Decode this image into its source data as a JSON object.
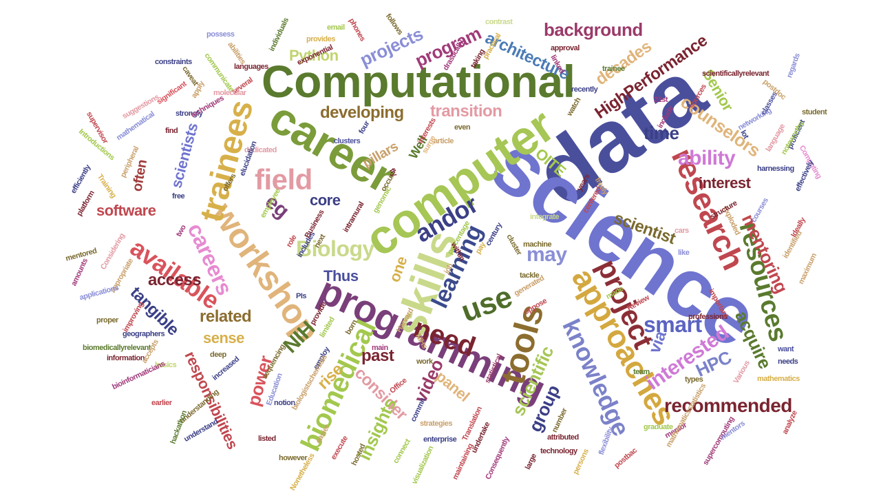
{
  "words": [
    {
      "text": "data",
      "color": "#4a4f9c"
    },
    {
      "text": "science",
      "color": "#6f74cf"
    },
    {
      "text": "Computational",
      "color": "#5a7a2e"
    },
    {
      "text": "computer",
      "color": "#a6c655"
    },
    {
      "text": "career",
      "color": "#7b9c3a"
    },
    {
      "text": "programming",
      "color": "#7a3f7a"
    },
    {
      "text": "skills",
      "color": "#c9d98a"
    },
    {
      "text": "workshop",
      "color": "#e0b47a"
    },
    {
      "text": "trainees",
      "color": "#d7b04a"
    },
    {
      "text": "research",
      "color": "#c0474f"
    },
    {
      "text": "approaches",
      "color": "#d4a83f"
    },
    {
      "text": "tools",
      "color": "#8c6d2f"
    },
    {
      "text": "knowledge",
      "color": "#7b82c9"
    },
    {
      "text": "project",
      "color": "#8c2e36"
    },
    {
      "text": "biomedical",
      "color": "#a3c84e"
    },
    {
      "text": "resources",
      "color": "#5a7a2e"
    },
    {
      "text": "field",
      "color": "#e39aa3"
    },
    {
      "text": "available",
      "color": "#d9535c"
    },
    {
      "text": "careers",
      "color": "#e78ad1"
    },
    {
      "text": "use",
      "color": "#4f6d2a"
    },
    {
      "text": "need",
      "color": "#7a2430"
    },
    {
      "text": "Biology",
      "color": "#c9d98a"
    },
    {
      "text": "learning",
      "color": "#3b4a8c"
    },
    {
      "text": "smart",
      "color": "#5b63c2"
    },
    {
      "text": "andor",
      "color": "#3b3f86"
    },
    {
      "text": "may",
      "color": "#8a8ed6"
    },
    {
      "text": "background",
      "color": "#9a3a6a"
    },
    {
      "text": "architecture",
      "color": "#4a7bb5"
    },
    {
      "text": "HighPerformance",
      "color": "#7a2430"
    },
    {
      "text": "projects",
      "color": "#8a8ed6"
    },
    {
      "text": "program",
      "color": "#a13a7a"
    },
    {
      "text": "Python",
      "color": "#c0d46e"
    },
    {
      "text": "developing",
      "color": "#8c6d2f"
    },
    {
      "text": "transition",
      "color": "#e39aa3"
    },
    {
      "text": "scientists",
      "color": "#6f74cf"
    },
    {
      "text": "counselors",
      "color": "#e0b47a"
    },
    {
      "text": "ability",
      "color": "#cf79d6"
    },
    {
      "text": "time",
      "color": "#3b3f86"
    },
    {
      "text": "OITE",
      "color": "#a3c84e"
    },
    {
      "text": "interest",
      "color": "#7a2430"
    },
    {
      "text": "decades",
      "color": "#e0b47a"
    },
    {
      "text": "Senior",
      "color": "#a3c84e"
    },
    {
      "text": "scientist",
      "color": "#7a6a2e"
    },
    {
      "text": "mentoring",
      "color": "#c0474f"
    },
    {
      "text": "acquire",
      "color": "#5a7a2e"
    },
    {
      "text": "interested",
      "color": "#cf79d6"
    },
    {
      "text": "HPC",
      "color": "#7b82c9"
    },
    {
      "text": "recommended",
      "color": "#7a2430"
    },
    {
      "text": "via",
      "color": "#6f74cf"
    },
    {
      "text": "scientific",
      "color": "#a6c655"
    },
    {
      "text": "group",
      "color": "#3b3f86"
    },
    {
      "text": "video",
      "color": "#9a3a6a"
    },
    {
      "text": "panel",
      "color": "#e0b47a"
    },
    {
      "text": "past",
      "color": "#7a2430"
    },
    {
      "text": "consider",
      "color": "#e39aa3"
    },
    {
      "text": "insights",
      "color": "#a3c84e"
    },
    {
      "text": "NIH",
      "color": "#5a7a2e"
    },
    {
      "text": "rise",
      "color": "#d7b04a"
    },
    {
      "text": "power",
      "color": "#d9535c"
    },
    {
      "text": "related",
      "color": "#8c6d2f"
    },
    {
      "text": "sense",
      "color": "#d7b04a"
    },
    {
      "text": "responsibilities",
      "color": "#c0474f"
    },
    {
      "text": "tangible",
      "color": "#3b3f86"
    },
    {
      "text": "access",
      "color": "#7a2430"
    },
    {
      "text": "Thus",
      "color": "#4a4f9c"
    },
    {
      "text": "one",
      "color": "#d7b04a"
    },
    {
      "text": "core",
      "color": "#3b3f86"
    },
    {
      "text": "eg",
      "color": "#7a3f7a"
    },
    {
      "text": "software",
      "color": "#c0474f"
    },
    {
      "text": "often",
      "color": "#a13a3a"
    },
    {
      "text": "pillars",
      "color": "#c9a06a"
    },
    {
      "text": "Well",
      "color": "#5a7a2e"
    },
    {
      "text": "exploded",
      "color": "#c9a06a"
    },
    {
      "text": "machine",
      "color": "#7a6a2e"
    },
    {
      "text": "statistical",
      "color": "#9a3a6a"
    },
    {
      "text": "basics",
      "color": "#c0d46e"
    },
    {
      "text": "Education",
      "color": "#8a8ed6"
    },
    {
      "text": "listed",
      "color": "#7a2430"
    },
    {
      "text": "hosted",
      "color": "#7a6a2e"
    },
    {
      "text": "connect",
      "color": "#a3c84e"
    },
    {
      "text": "enterprise",
      "color": "#3b3f86"
    },
    {
      "text": "technology",
      "color": "#7a2430"
    },
    {
      "text": "flexibility",
      "color": "#8a8ed6"
    },
    {
      "text": "mentor",
      "color": "#a13a7a"
    },
    {
      "text": "analyze",
      "color": "#c0474f"
    },
    {
      "text": "supercomputing",
      "color": "#a13a7a"
    },
    {
      "text": "mathematics",
      "color": "#d7b04a"
    },
    {
      "text": "needs",
      "color": "#3b3f86"
    },
    {
      "text": "want",
      "color": "#4a4f9c"
    },
    {
      "text": "team",
      "color": "#5a7a2e"
    },
    {
      "text": "types",
      "color": "#7a6a2e"
    },
    {
      "text": "Review",
      "color": "#c0474f"
    },
    {
      "text": "tackle",
      "color": "#7a6a2e"
    },
    {
      "text": "like",
      "color": "#8a8ed6"
    },
    {
      "text": "identified",
      "color": "#c9a06a"
    },
    {
      "text": "structure",
      "color": "#7a2430"
    },
    {
      "text": "Ideally",
      "color": "#c0474f"
    },
    {
      "text": "harnessing",
      "color": "#3b3f86"
    },
    {
      "text": "Computing",
      "color": "#e78ad1"
    },
    {
      "text": "proficient",
      "color": "#3b3f86"
    },
    {
      "text": "networking",
      "color": "#8a8ed6"
    },
    {
      "text": "student",
      "color": "#7a6a2e"
    },
    {
      "text": "classes",
      "color": "#4a4f9c"
    },
    {
      "text": "postdoc",
      "color": "#c9a06a"
    },
    {
      "text": "regards",
      "color": "#8a8ed6"
    },
    {
      "text": "scientificallyrelevant",
      "color": "#7a2430"
    },
    {
      "text": "trainee",
      "color": "#5a7a2e"
    },
    {
      "text": "approval",
      "color": "#7a2430"
    },
    {
      "text": "linked",
      "color": "#a13a7a"
    },
    {
      "text": "contrast",
      "color": "#c9d98a"
    },
    {
      "text": "practical",
      "color": "#d7b04a"
    },
    {
      "text": "taking",
      "color": "#7a2430"
    },
    {
      "text": "drastically",
      "color": "#a13a7a"
    },
    {
      "text": "follows",
      "color": "#7a6a2e"
    },
    {
      "text": "phones",
      "color": "#c0474f"
    },
    {
      "text": "email",
      "color": "#a3c84e"
    },
    {
      "text": "provides",
      "color": "#d7b04a"
    },
    {
      "text": "exponential",
      "color": "#7a2430"
    },
    {
      "text": "individuals",
      "color": "#5a7a2e"
    },
    {
      "text": "possess",
      "color": "#8a8ed6"
    },
    {
      "text": "abilities",
      "color": "#c9a06a"
    },
    {
      "text": "languages",
      "color": "#7a2430"
    },
    {
      "text": "constraints",
      "color": "#3b3f86"
    },
    {
      "text": "communicate",
      "color": "#a3c84e"
    },
    {
      "text": "several",
      "color": "#c0474f"
    },
    {
      "text": "molecular",
      "color": "#e39aa3"
    },
    {
      "text": "apply",
      "color": "#c9a06a"
    },
    {
      "text": "caveat",
      "color": "#7a6a2e"
    },
    {
      "text": "significant",
      "color": "#d9535c"
    },
    {
      "text": "strongly",
      "color": "#3b3f86"
    },
    {
      "text": "techniques",
      "color": "#a13a7a"
    },
    {
      "text": "suggestions",
      "color": "#e39aa3"
    },
    {
      "text": "mathematical",
      "color": "#8a8ed6"
    },
    {
      "text": "find",
      "color": "#7a2430"
    },
    {
      "text": "supervisor",
      "color": "#c0474f"
    },
    {
      "text": "Introductions",
      "color": "#a3c84e"
    },
    {
      "text": "dedicated",
      "color": "#e39aa3"
    },
    {
      "text": "peripheral",
      "color": "#c9a06a"
    },
    {
      "text": "efficiently",
      "color": "#3b3f86"
    },
    {
      "text": "Training",
      "color": "#d7b04a"
    },
    {
      "text": "platform",
      "color": "#7a2430"
    },
    {
      "text": "free",
      "color": "#3b3f86"
    },
    {
      "text": "offers",
      "color": "#7a6a2e"
    },
    {
      "text": "elucidation",
      "color": "#3b3f86"
    },
    {
      "text": "clusters",
      "color": "#4a4f9c"
    },
    {
      "text": "genomic",
      "color": "#a3c84e"
    },
    {
      "text": "intramural",
      "color": "#7a2430"
    },
    {
      "text": "mentored",
      "color": "#7a6a2e"
    },
    {
      "text": "Considering",
      "color": "#e39aa3"
    },
    {
      "text": "amounts",
      "color": "#a13a7a"
    },
    {
      "text": "appropriate",
      "color": "#c9a06a"
    },
    {
      "text": "applications",
      "color": "#8a8ed6"
    },
    {
      "text": "improving",
      "color": "#c0474f"
    },
    {
      "text": "proper",
      "color": "#7a6a2e"
    },
    {
      "text": "geographers",
      "color": "#3b3f86"
    },
    {
      "text": "biomedicallyrelevant",
      "color": "#5a7a2e"
    },
    {
      "text": "information",
      "color": "#7a2430"
    },
    {
      "text": "accepts",
      "color": "#c9a06a"
    },
    {
      "text": "bioinformaticians",
      "color": "#a13a7a"
    },
    {
      "text": "deep",
      "color": "#7a6a2e"
    },
    {
      "text": "increased",
      "color": "#3b3f86"
    },
    {
      "text": "earlier",
      "color": "#c0474f"
    },
    {
      "text": "understanding",
      "color": "#7a6a2e"
    },
    {
      "text": "hackathon",
      "color": "#5a7a2e"
    },
    {
      "text": "understand",
      "color": "#3b3f86"
    },
    {
      "text": "notion",
      "color": "#3b3f86"
    },
    {
      "text": "however",
      "color": "#7a6a2e"
    },
    {
      "text": "easier",
      "color": "#c9a06a"
    },
    {
      "text": "execute",
      "color": "#c0474f"
    },
    {
      "text": "Nonetheless",
      "color": "#d7b04a"
    },
    {
      "text": "strategies",
      "color": "#c9a06a"
    },
    {
      "text": "Translation",
      "color": "#c0474f"
    },
    {
      "text": "undertake",
      "color": "#7a2430"
    },
    {
      "text": "commit",
      "color": "#3b3f86"
    },
    {
      "text": "visualization",
      "color": "#a3c84e"
    },
    {
      "text": "maintaining",
      "color": "#c0474f"
    },
    {
      "text": "Consequently",
      "color": "#a13a7a"
    },
    {
      "text": "large",
      "color": "#7a2430"
    },
    {
      "text": "number",
      "color": "#7a6a2e"
    },
    {
      "text": "attributed",
      "color": "#7a2430"
    },
    {
      "text": "persons",
      "color": "#d7b04a"
    },
    {
      "text": "postbac",
      "color": "#c0474f"
    },
    {
      "text": "graduate",
      "color": "#a3c84e"
    },
    {
      "text": "mentors",
      "color": "#8a8ed6"
    },
    {
      "text": "mathematicsstatistics",
      "color": "#c9a06a"
    },
    {
      "text": "professions",
      "color": "#7a2430"
    },
    {
      "text": "important",
      "color": "#c0474f"
    },
    {
      "text": "Harvard",
      "color": "#c9a06a"
    },
    {
      "text": "born",
      "color": "#7a6a2e"
    },
    {
      "text": "main",
      "color": "#a13a7a"
    },
    {
      "text": "PIs",
      "color": "#3b3f86"
    },
    {
      "text": "provide",
      "color": "#7a2430"
    },
    {
      "text": "limited",
      "color": "#a3c84e"
    },
    {
      "text": "NIHs",
      "color": "#c9a06a"
    },
    {
      "text": "work",
      "color": "#7a6a2e"
    },
    {
      "text": "Office",
      "color": "#c0474f"
    },
    {
      "text": "employ",
      "color": "#3b3f86"
    },
    {
      "text": "sequencing",
      "color": "#7a6a2e"
    },
    {
      "text": "biologistschemists",
      "color": "#c9a06a"
    },
    {
      "text": "includes",
      "color": "#3b3f86"
    },
    {
      "text": "Business",
      "color": "#7a2430"
    },
    {
      "text": "role",
      "color": "#c0474f"
    },
    {
      "text": "next",
      "color": "#7a6a2e"
    },
    {
      "text": "percentage",
      "color": "#a3c84e"
    },
    {
      "text": "job",
      "color": "#c9a06a"
    },
    {
      "text": "within",
      "color": "#7a2430"
    },
    {
      "text": "pay",
      "color": "#d7b04a"
    },
    {
      "text": "century",
      "color": "#3b3f86"
    },
    {
      "text": "cluster",
      "color": "#7a6a2e"
    },
    {
      "text": "centered",
      "color": "#c0474f"
    },
    {
      "text": "years",
      "color": "#7a2430"
    },
    {
      "text": "freely",
      "color": "#c9a06a"
    },
    {
      "text": "cars",
      "color": "#e39aa3"
    },
    {
      "text": "courses",
      "color": "#8a8ed6"
    },
    {
      "text": "integrate",
      "color": "#c9d98a"
    },
    {
      "text": "made",
      "color": "#a3c84e"
    },
    {
      "text": "oppose",
      "color": "#c0474f"
    },
    {
      "text": "generated",
      "color": "#c9a06a"
    },
    {
      "text": "surge",
      "color": "#e0b47a"
    },
    {
      "text": "article",
      "color": "#c9a06a"
    },
    {
      "text": "even",
      "color": "#7a6a2e"
    },
    {
      "text": "interests",
      "color": "#c0474f"
    },
    {
      "text": "four",
      "color": "#3b3f86"
    },
    {
      "text": "occur",
      "color": "#7a6a2e"
    },
    {
      "text": "fly",
      "color": "#7a2430"
    },
    {
      "text": "21st",
      "color": "#a13a7a"
    },
    {
      "text": "include",
      "color": "#a13a7a"
    },
    {
      "text": "sources",
      "color": "#c0474f"
    },
    {
      "text": "recently",
      "color": "#3b3f86"
    },
    {
      "text": "watch",
      "color": "#7a6a2e"
    },
    {
      "text": "lot",
      "color": "#3b3f86"
    },
    {
      "text": "language",
      "color": "#e39aa3"
    },
    {
      "text": "noteworthy",
      "color": "#a3c84e"
    },
    {
      "text": "effectively",
      "color": "#3b3f86"
    },
    {
      "text": "maximum",
      "color": "#c9a06a"
    },
    {
      "text": "Various",
      "color": "#e39aa3"
    },
    {
      "text": "employee",
      "color": "#a3c84e"
    },
    {
      "text": "two",
      "color": "#a13a7a"
    },
    {
      "text": "Note",
      "color": "#7a2430"
    }
  ]
}
